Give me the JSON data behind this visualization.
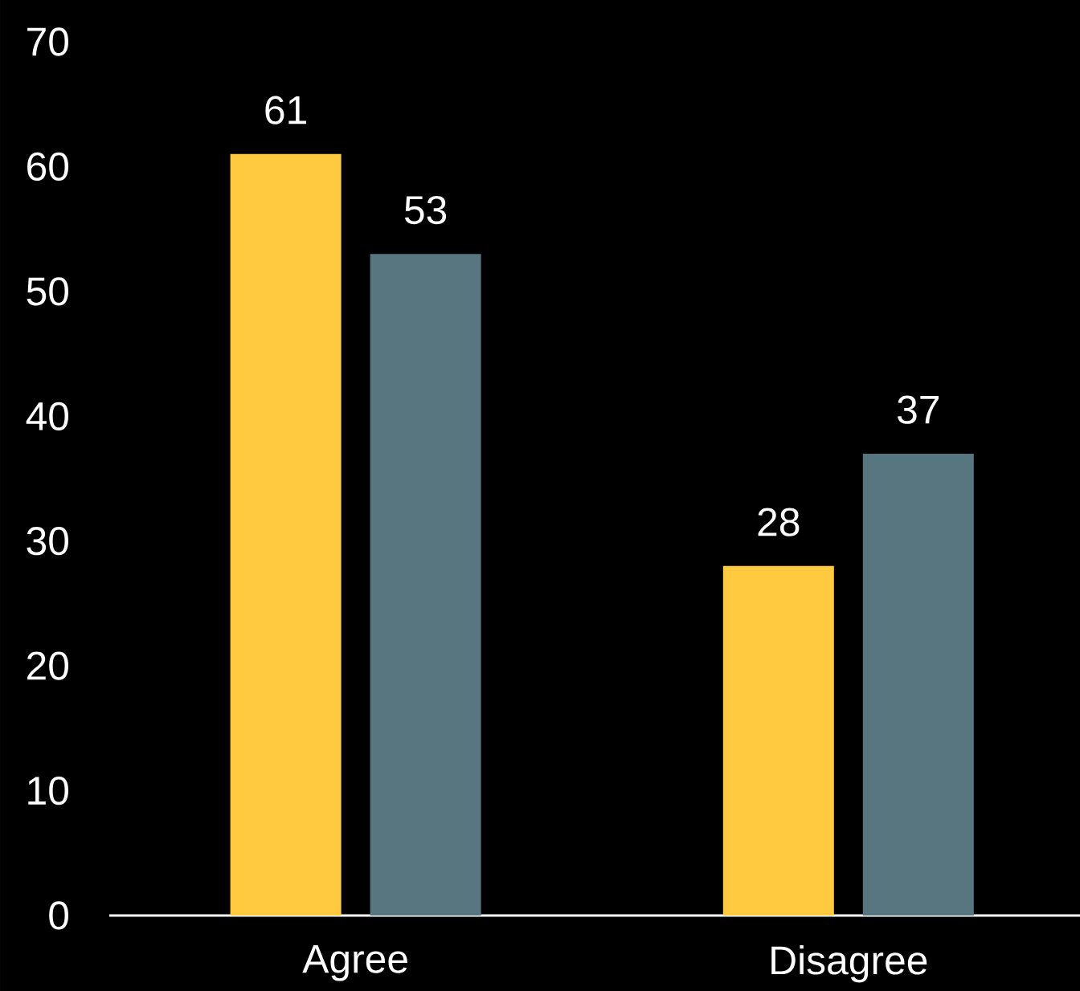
{
  "chart_data": {
    "type": "bar",
    "categories": [
      "Agree",
      "Disagree"
    ],
    "series": [
      {
        "color": "#ffc940",
        "values": [
          61,
          28
        ]
      },
      {
        "color": "#58767f",
        "values": [
          53,
          37
        ]
      }
    ],
    "ylim": [
      0,
      70
    ],
    "yticks": [
      0,
      10,
      20,
      30,
      40,
      50,
      60,
      70
    ],
    "data_labels": true
  }
}
